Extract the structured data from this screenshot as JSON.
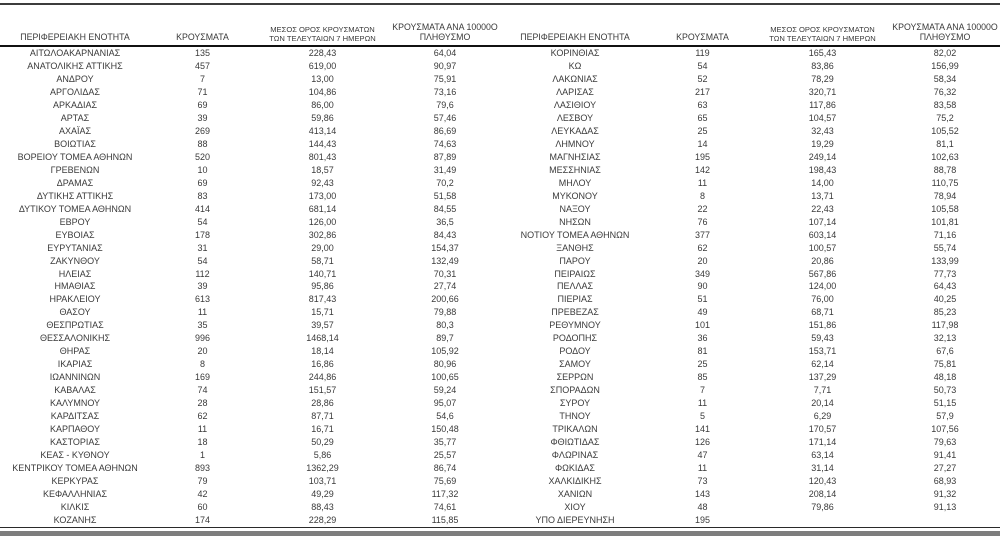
{
  "table": {
    "headers": {
      "region": "ΠΕΡΙΦΕΡΕΙΑΚΗ ΕΝΟΤΗΤΑ",
      "cases": "ΚΡΟΥΣΜΑΤΑ",
      "avg7_line1": "ΜΕΣΟΣ ΟΡΟΣ ΚΡΟΥΣΜΑΤΩΝ",
      "avg7_line2": "ΤΩΝ ΤΕΛΕΥΤΑΙΩΝ 7 ΗΜΕΡΩΝ",
      "per100k_line1": "ΚΡΟΥΣΜΑΤΑ ΑΝΑ 10000Ο",
      "per100k_line2": "ΠΛΗΘΥΣΜΟ"
    },
    "left_rows": [
      [
        "ΑΙΤΩΛΟΑΚΑΡΝΑΝΙΑΣ",
        "135",
        "228,43",
        "64,04"
      ],
      [
        "ΑΝΑΤΟΛΙΚΗΣ ΑΤΤΙΚΗΣ",
        "457",
        "619,00",
        "90,97"
      ],
      [
        "ΑΝΔΡΟΥ",
        "7",
        "13,00",
        "75,91"
      ],
      [
        "ΑΡΓΟΛΙΔΑΣ",
        "71",
        "104,86",
        "73,16"
      ],
      [
        "ΑΡΚΑΔΙΑΣ",
        "69",
        "86,00",
        "79,6"
      ],
      [
        "ΑΡΤΑΣ",
        "39",
        "59,86",
        "57,46"
      ],
      [
        "ΑΧΑΪΑΣ",
        "269",
        "413,14",
        "86,69"
      ],
      [
        "ΒΟΙΩΤΙΑΣ",
        "88",
        "144,43",
        "74,63"
      ],
      [
        "ΒΟΡΕΙΟΥ ΤΟΜΕΑ ΑΘΗΝΩΝ",
        "520",
        "801,43",
        "87,89"
      ],
      [
        "ΓΡΕΒΕΝΩΝ",
        "10",
        "18,57",
        "31,49"
      ],
      [
        "ΔΡΑΜΑΣ",
        "69",
        "92,43",
        "70,2"
      ],
      [
        "ΔΥΤΙΚΗΣ ΑΤΤΙΚΗΣ",
        "83",
        "173,00",
        "51,58"
      ],
      [
        "ΔΥΤΙΚΟΥ ΤΟΜΕΑ ΑΘΗΝΩΝ",
        "414",
        "681,14",
        "84,55"
      ],
      [
        "ΕΒΡΟΥ",
        "54",
        "126,00",
        "36,5"
      ],
      [
        "ΕΥΒΟΙΑΣ",
        "178",
        "302,86",
        "84,43"
      ],
      [
        "ΕΥΡΥΤΑΝΙΑΣ",
        "31",
        "29,00",
        "154,37"
      ],
      [
        "ΖΑΚΥΝΘΟΥ",
        "54",
        "58,71",
        "132,49"
      ],
      [
        "ΗΛΕΙΑΣ",
        "112",
        "140,71",
        "70,31"
      ],
      [
        "ΗΜΑΘΙΑΣ",
        "39",
        "95,86",
        "27,74"
      ],
      [
        "ΗΡΑΚΛΕΙΟΥ",
        "613",
        "817,43",
        "200,66"
      ],
      [
        "ΘΑΣΟΥ",
        "11",
        "15,71",
        "79,88"
      ],
      [
        "ΘΕΣΠΡΩΤΙΑΣ",
        "35",
        "39,57",
        "80,3"
      ],
      [
        "ΘΕΣΣΑΛΟΝΙΚΗΣ",
        "996",
        "1468,14",
        "89,7"
      ],
      [
        "ΘΗΡΑΣ",
        "20",
        "18,14",
        "105,92"
      ],
      [
        "ΙΚΑΡΙΑΣ",
        "8",
        "16,86",
        "80,96"
      ],
      [
        "ΙΩΑΝΝΙΝΩΝ",
        "169",
        "244,86",
        "100,65"
      ],
      [
        "ΚΑΒΑΛΑΣ",
        "74",
        "151,57",
        "59,24"
      ],
      [
        "ΚΑΛΥΜΝΟΥ",
        "28",
        "28,86",
        "95,07"
      ],
      [
        "ΚΑΡΔΙΤΣΑΣ",
        "62",
        "87,71",
        "54,6"
      ],
      [
        "ΚΑΡΠΑΘΟΥ",
        "11",
        "16,71",
        "150,48"
      ],
      [
        "ΚΑΣΤΟΡΙΑΣ",
        "18",
        "50,29",
        "35,77"
      ],
      [
        "ΚΕΑΣ - ΚΥΘΝΟΥ",
        "1",
        "5,86",
        "25,57"
      ],
      [
        "ΚΕΝΤΡΙΚΟΥ ΤΟΜΕΑ ΑΘΗΝΩΝ",
        "893",
        "1362,29",
        "86,74"
      ],
      [
        "ΚΕΡΚΥΡΑΣ",
        "79",
        "103,71",
        "75,69"
      ],
      [
        "ΚΕΦΑΛΛΗΝΙΑΣ",
        "42",
        "49,29",
        "117,32"
      ],
      [
        "ΚΙΛΚΙΣ",
        "60",
        "88,43",
        "74,61"
      ],
      [
        "ΚΟΖΑΝΗΣ",
        "174",
        "228,29",
        "115,85"
      ]
    ],
    "right_rows": [
      [
        "ΚΟΡΙΝΘΙΑΣ",
        "119",
        "165,43",
        "82,02"
      ],
      [
        "ΚΩ",
        "54",
        "83,86",
        "156,99"
      ],
      [
        "ΛΑΚΩΝΙΑΣ",
        "52",
        "78,29",
        "58,34"
      ],
      [
        "ΛΑΡΙΣΑΣ",
        "217",
        "320,71",
        "76,32"
      ],
      [
        "ΛΑΣΙΘΙΟΥ",
        "63",
        "117,86",
        "83,58"
      ],
      [
        "ΛΕΣΒΟΥ",
        "65",
        "104,57",
        "75,2"
      ],
      [
        "ΛΕΥΚΑΔΑΣ",
        "25",
        "32,43",
        "105,52"
      ],
      [
        "ΛΗΜΝΟΥ",
        "14",
        "19,29",
        "81,1"
      ],
      [
        "ΜΑΓΝΗΣΙΑΣ",
        "195",
        "249,14",
        "102,63"
      ],
      [
        "ΜΕΣΣΗΝΙΑΣ",
        "142",
        "198,43",
        "88,78"
      ],
      [
        "ΜΗΛΟΥ",
        "11",
        "14,00",
        "110,75"
      ],
      [
        "ΜΥΚΟΝΟΥ",
        "8",
        "13,71",
        "78,94"
      ],
      [
        "ΝΑΞΟΥ",
        "22",
        "22,43",
        "105,58"
      ],
      [
        "ΝΗΣΩΝ",
        "76",
        "107,14",
        "101,81"
      ],
      [
        "ΝΟΤΙΟΥ ΤΟΜΕΑ ΑΘΗΝΩΝ",
        "377",
        "603,14",
        "71,16"
      ],
      [
        "ΞΑΝΘΗΣ",
        "62",
        "100,57",
        "55,74"
      ],
      [
        "ΠΑΡΟΥ",
        "20",
        "20,86",
        "133,99"
      ],
      [
        "ΠΕΙΡΑΙΩΣ",
        "349",
        "567,86",
        "77,73"
      ],
      [
        "ΠΕΛΛΑΣ",
        "90",
        "124,00",
        "64,43"
      ],
      [
        "ΠΙΕΡΙΑΣ",
        "51",
        "76,00",
        "40,25"
      ],
      [
        "ΠΡΕΒΕΖΑΣ",
        "49",
        "68,71",
        "85,23"
      ],
      [
        "ΡΕΘΥΜΝΟΥ",
        "101",
        "151,86",
        "117,98"
      ],
      [
        "ΡΟΔΟΠΗΣ",
        "36",
        "59,43",
        "32,13"
      ],
      [
        "ΡΟΔΟΥ",
        "81",
        "153,71",
        "67,6"
      ],
      [
        "ΣΑΜΟΥ",
        "25",
        "62,14",
        "75,81"
      ],
      [
        "ΣΕΡΡΩΝ",
        "85",
        "137,29",
        "48,18"
      ],
      [
        "ΣΠΟΡΑΔΩΝ",
        "7",
        "7,71",
        "50,73"
      ],
      [
        "ΣΥΡΟΥ",
        "11",
        "20,14",
        "51,15"
      ],
      [
        "ΤΗΝΟΥ",
        "5",
        "6,29",
        "57,9"
      ],
      [
        "ΤΡΙΚΑΛΩΝ",
        "141",
        "170,57",
        "107,56"
      ],
      [
        "ΦΘΙΩΤΙΔΑΣ",
        "126",
        "171,14",
        "79,63"
      ],
      [
        "ΦΛΩΡΙΝΑΣ",
        "47",
        "63,14",
        "91,41"
      ],
      [
        "ΦΩΚΙΔΑΣ",
        "11",
        "31,14",
        "27,27"
      ],
      [
        "ΧΑΛΚΙΔΙΚΗΣ",
        "73",
        "120,43",
        "68,93"
      ],
      [
        "ΧΑΝΙΩΝ",
        "143",
        "208,14",
        "91,32"
      ],
      [
        "ΧΙΟΥ",
        "48",
        "79,86",
        "91,13"
      ],
      [
        "ΥΠΟ ΔΙΕΡΕΥΝΗΣΗ",
        "195",
        "",
        ""
      ]
    ]
  }
}
